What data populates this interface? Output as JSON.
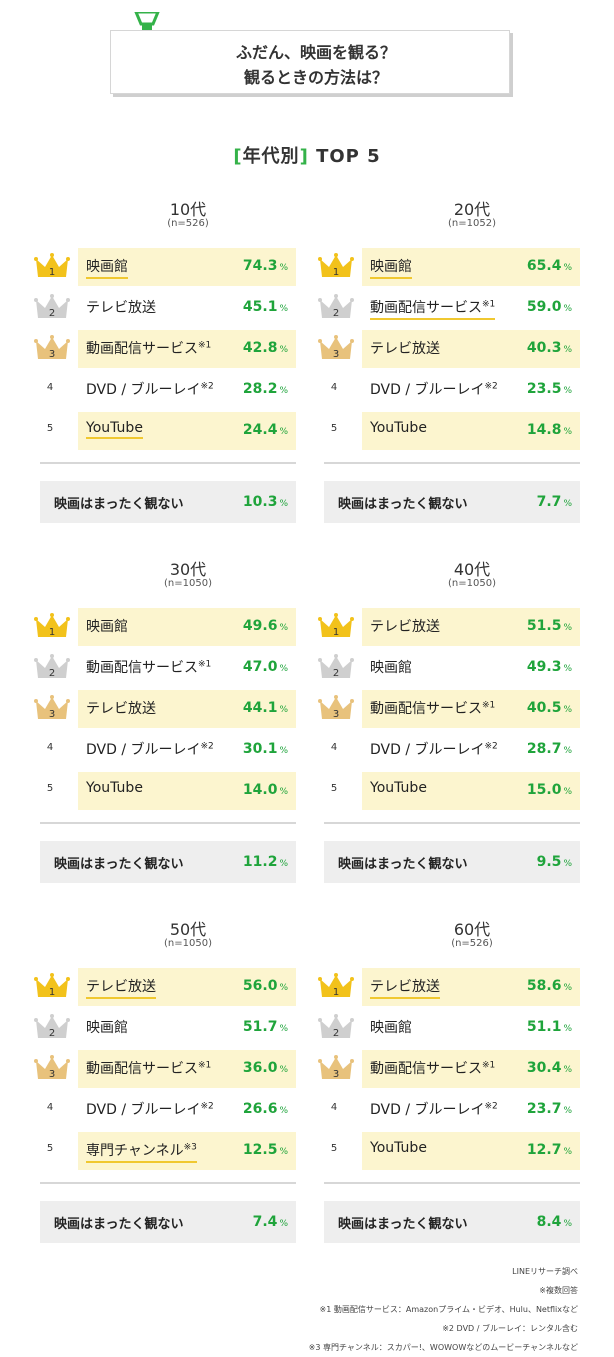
{
  "header": {
    "title_line1": "ふだん、映画を観る？",
    "title_line2": "観るときの方法は？",
    "section_bracket_open": "[",
    "section_word": "年代別",
    "section_bracket_close": "]",
    "section_suffix": "TOP 5"
  },
  "colors": {
    "accent": "#34b249",
    "percent": "#1fa43b",
    "highlight": "#fcf5cf",
    "underline": "#f0c830",
    "gold": "#f2c21b",
    "silver": "#cfcfcf",
    "bronze": "#e8c27c"
  },
  "icons": [
    "trophy-icon",
    "gold-crown-icon",
    "silver-crown-icon",
    "bronze-crown-icon"
  ],
  "unit": "%",
  "never_label": "映画はまったく観ない",
  "chart_data": [
    {
      "type": "table",
      "age": "10代",
      "n": "(n=526)",
      "rows": [
        {
          "rank": "1",
          "label": "映画館",
          "note": "",
          "value": "74.3",
          "highlight": true,
          "underline": true
        },
        {
          "rank": "2",
          "label": "テレビ放送",
          "note": "",
          "value": "45.1",
          "highlight": false,
          "underline": false
        },
        {
          "rank": "3",
          "label": "動画配信サービス",
          "note": "※1",
          "value": "42.8",
          "highlight": true,
          "underline": false
        },
        {
          "rank": "4",
          "label": "DVD / ブルーレイ",
          "note": "※2",
          "value": "28.2",
          "highlight": false,
          "underline": false
        },
        {
          "rank": "5",
          "label": "YouTube",
          "note": "",
          "value": "24.4",
          "highlight": true,
          "underline": true
        }
      ],
      "never_value": "10.3"
    },
    {
      "type": "table",
      "age": "20代",
      "n": "(n=1052)",
      "rows": [
        {
          "rank": "1",
          "label": "映画館",
          "note": "",
          "value": "65.4",
          "highlight": true,
          "underline": true
        },
        {
          "rank": "2",
          "label": "動画配信サービス",
          "note": "※1",
          "value": "59.0",
          "highlight": false,
          "underline": true
        },
        {
          "rank": "3",
          "label": "テレビ放送",
          "note": "",
          "value": "40.3",
          "highlight": true,
          "underline": false
        },
        {
          "rank": "4",
          "label": "DVD / ブルーレイ",
          "note": "※2",
          "value": "23.5",
          "highlight": false,
          "underline": false
        },
        {
          "rank": "5",
          "label": "YouTube",
          "note": "",
          "value": "14.8",
          "highlight": true,
          "underline": false
        }
      ],
      "never_value": "7.7"
    },
    {
      "type": "table",
      "age": "30代",
      "n": "(n=1050)",
      "rows": [
        {
          "rank": "1",
          "label": "映画館",
          "note": "",
          "value": "49.6",
          "highlight": true,
          "underline": false
        },
        {
          "rank": "2",
          "label": "動画配信サービス",
          "note": "※1",
          "value": "47.0",
          "highlight": false,
          "underline": false
        },
        {
          "rank": "3",
          "label": "テレビ放送",
          "note": "",
          "value": "44.1",
          "highlight": true,
          "underline": false
        },
        {
          "rank": "4",
          "label": "DVD / ブルーレイ",
          "note": "※2",
          "value": "30.1",
          "highlight": false,
          "underline": false
        },
        {
          "rank": "5",
          "label": "YouTube",
          "note": "",
          "value": "14.0",
          "highlight": true,
          "underline": false
        }
      ],
      "never_value": "11.2"
    },
    {
      "type": "table",
      "age": "40代",
      "n": "(n=1050)",
      "rows": [
        {
          "rank": "1",
          "label": "テレビ放送",
          "note": "",
          "value": "51.5",
          "highlight": true,
          "underline": false
        },
        {
          "rank": "2",
          "label": "映画館",
          "note": "",
          "value": "49.3",
          "highlight": false,
          "underline": false
        },
        {
          "rank": "3",
          "label": "動画配信サービス",
          "note": "※1",
          "value": "40.5",
          "highlight": true,
          "underline": false
        },
        {
          "rank": "4",
          "label": "DVD / ブルーレイ",
          "note": "※2",
          "value": "28.7",
          "highlight": false,
          "underline": false
        },
        {
          "rank": "5",
          "label": "YouTube",
          "note": "",
          "value": "15.0",
          "highlight": true,
          "underline": false
        }
      ],
      "never_value": "9.5"
    },
    {
      "type": "table",
      "age": "50代",
      "n": "(n=1050)",
      "rows": [
        {
          "rank": "1",
          "label": "テレビ放送",
          "note": "",
          "value": "56.0",
          "highlight": true,
          "underline": true
        },
        {
          "rank": "2",
          "label": "映画館",
          "note": "",
          "value": "51.7",
          "highlight": false,
          "underline": false
        },
        {
          "rank": "3",
          "label": "動画配信サービス",
          "note": "※1",
          "value": "36.0",
          "highlight": true,
          "underline": false
        },
        {
          "rank": "4",
          "label": "DVD / ブルーレイ",
          "note": "※2",
          "value": "26.6",
          "highlight": false,
          "underline": false
        },
        {
          "rank": "5",
          "label": "専門チャンネル",
          "note": "※3",
          "value": "12.5",
          "highlight": true,
          "underline": true
        }
      ],
      "never_value": "7.4"
    },
    {
      "type": "table",
      "age": "60代",
      "n": "(n=526)",
      "rows": [
        {
          "rank": "1",
          "label": "テレビ放送",
          "note": "",
          "value": "58.6",
          "highlight": true,
          "underline": true
        },
        {
          "rank": "2",
          "label": "映画館",
          "note": "",
          "value": "51.1",
          "highlight": false,
          "underline": false
        },
        {
          "rank": "3",
          "label": "動画配信サービス",
          "note": "※1",
          "value": "30.4",
          "highlight": true,
          "underline": false
        },
        {
          "rank": "4",
          "label": "DVD / ブルーレイ",
          "note": "※2",
          "value": "23.7",
          "highlight": false,
          "underline": false
        },
        {
          "rank": "5",
          "label": "YouTube",
          "note": "",
          "value": "12.7",
          "highlight": true,
          "underline": false
        }
      ],
      "never_value": "8.4"
    }
  ],
  "footnotes": [
    "LINEリサーチ調べ",
    "※複数回答",
    "※1 動画配信サービス：Amazonプライム・ビデオ、Hulu、Netflixなど",
    "※2 DVD / ブルーレイ：レンタル含む",
    "※3 専門チャンネル：スカパー!、WOWOWなどのムービーチャンネルなど"
  ]
}
